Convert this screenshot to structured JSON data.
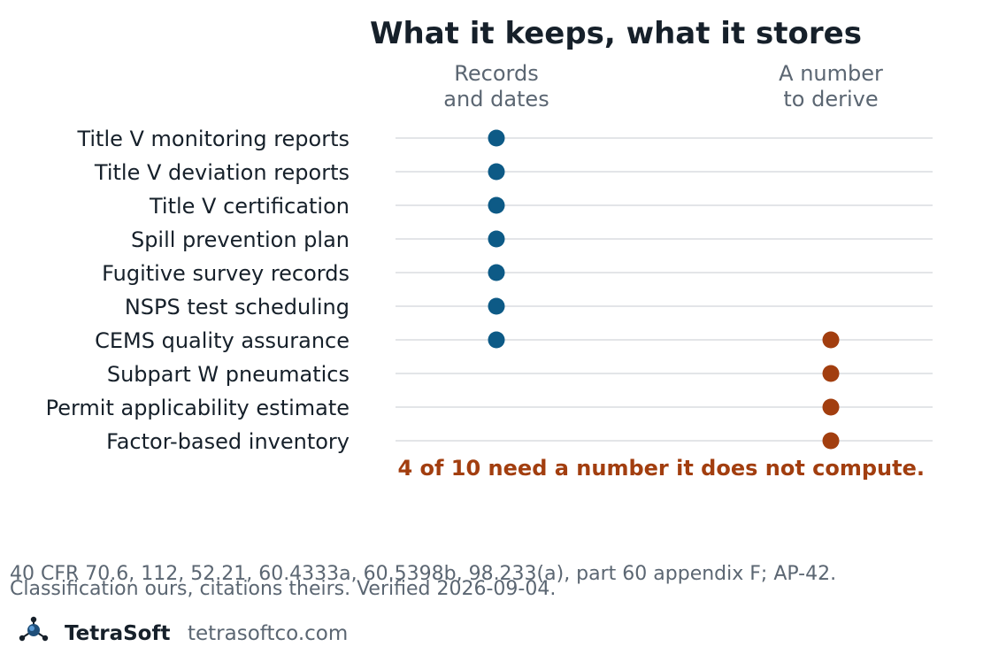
{
  "chart_data": {
    "type": "dot-matrix",
    "title": "What it keeps, what it stores",
    "columns": [
      {
        "line1": "Records",
        "line2": "and dates"
      },
      {
        "line1": "A number",
        "line2": "to derive"
      }
    ],
    "rows": [
      {
        "label": "Title V monitoring reports",
        "records_and_dates": true,
        "number_to_derive": false
      },
      {
        "label": "Title V deviation reports",
        "records_and_dates": true,
        "number_to_derive": false
      },
      {
        "label": "Title V certification",
        "records_and_dates": true,
        "number_to_derive": false
      },
      {
        "label": "Spill prevention plan",
        "records_and_dates": true,
        "number_to_derive": false
      },
      {
        "label": "Fugitive survey records",
        "records_and_dates": true,
        "number_to_derive": false
      },
      {
        "label": "NSPS test scheduling",
        "records_and_dates": true,
        "number_to_derive": false
      },
      {
        "label": "CEMS quality assurance",
        "records_and_dates": true,
        "number_to_derive": true
      },
      {
        "label": "Subpart W pneumatics",
        "records_and_dates": false,
        "number_to_derive": true
      },
      {
        "label": "Permit applicability estimate",
        "records_and_dates": false,
        "number_to_derive": true
      },
      {
        "label": "Factor-based inventory",
        "records_and_dates": false,
        "number_to_derive": true
      }
    ],
    "callout": "4 of 10 need a number it does not compute.",
    "grid": true
  },
  "footnote": {
    "line1": "40 CFR 70.6, 112, 52.21, 60.4333a, 60.5398b, 98.233(a), part 60 appendix F; AP-42.",
    "line2": "Classification ours, citations theirs. Verified 2026-09-04."
  },
  "brand": {
    "name": "TetraSoft",
    "url": "tetrasoftco.com",
    "logo_icon": "molecule-icon"
  },
  "colors": {
    "records_dot": "#0d5a86",
    "derive_dot": "#a23e0f",
    "callout": "#a23e0f",
    "gridline": "#e3e5e8"
  }
}
